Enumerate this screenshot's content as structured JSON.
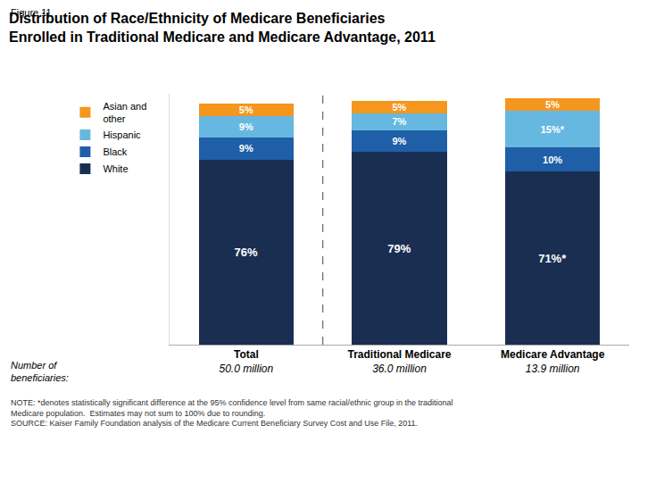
{
  "chart_data": {
    "type": "bar",
    "stacked": true,
    "title": "Distribution of Race/Ethnicity of Medicare Beneficiaries\nEnrolled in Traditional Medicare and Medicare Advantage, 2011",
    "categories": [
      "Total",
      "Traditional Medicare",
      "Medicare Advantage"
    ],
    "series": [
      {
        "name": "White",
        "color": "#1a2e52",
        "values": [
          76,
          79,
          71
        ],
        "value_labels": [
          "76%",
          "79%",
          "71%*"
        ]
      },
      {
        "name": "Black",
        "color": "#1e5fa8",
        "values": [
          9,
          9,
          10
        ],
        "value_labels": [
          "9%",
          "9%",
          "10%"
        ]
      },
      {
        "name": "Hispanic",
        "color": "#66b8e0",
        "values": [
          9,
          7,
          15
        ],
        "value_labels": [
          "9%",
          "7%",
          "15%*"
        ]
      },
      {
        "name": "Asian and\nother",
        "color": "#f5961d",
        "values": [
          5,
          5,
          5
        ],
        "value_labels": [
          "5%",
          "5%",
          "5%"
        ]
      }
    ],
    "ylim": [
      0,
      103
    ],
    "yticks": [],
    "grid": false,
    "legend": "left",
    "data_labels": true,
    "tick_labels": "x",
    "annotations": [
      "Figure 11",
      "50.0 million",
      "36.0 million",
      "13.9 million",
      "Number of\nbeneficiaries:",
      "NOTE: *denotes statistically significant difference at the 95% confidence level from same racial/ethnic group in the traditional\nMedicare population.  Estimates may not sum to 100% due to rounding.\nSOURCE: Kaiser Family Foundation analysis of the Medicare Current Beneficiary Survey Cost and Use File, 2011."
    ]
  }
}
